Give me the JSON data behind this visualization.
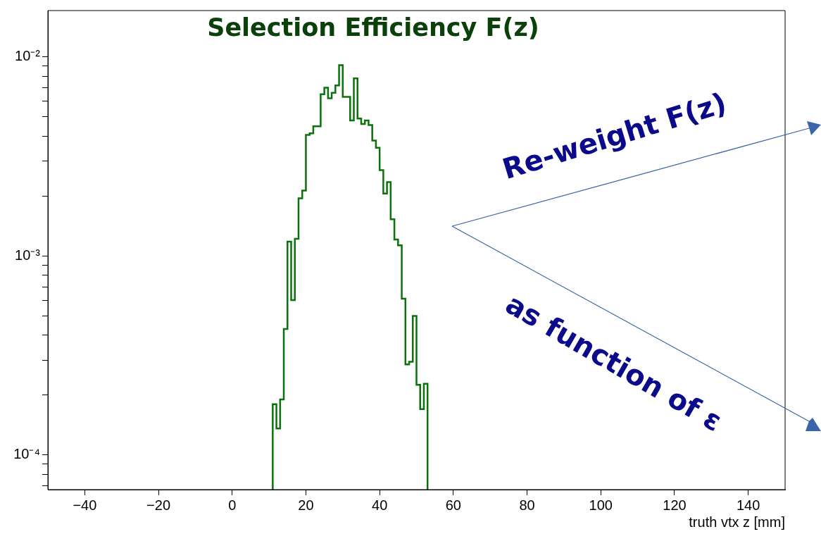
{
  "chart_data": {
    "type": "histogram",
    "title": "Selection Efficiency F(z)",
    "xlabel": "truth vtx z [mm]",
    "bins": [
      11,
      12,
      13,
      14,
      15,
      16,
      17,
      18,
      19,
      20,
      21,
      22,
      23,
      24,
      25,
      26,
      27,
      28,
      29,
      30,
      31,
      32,
      33,
      34,
      35,
      36,
      37,
      38,
      39,
      40,
      41,
      42,
      43,
      44,
      45,
      46,
      47,
      48,
      49,
      50,
      51,
      52,
      53
    ],
    "values": [
      0.00018,
      0.000136,
      0.00019,
      0.00043,
      0.00118,
      0.0006,
      0.00122,
      0.00195,
      0.00213,
      0.00406,
      0.00413,
      0.00448,
      0.00448,
      0.0065,
      0.007,
      0.0062,
      0.0066,
      0.0072,
      0.0091,
      0.0063,
      0.0063,
      0.0048,
      0.0078,
      0.0049,
      0.0046,
      0.0048,
      0.00455,
      0.0038,
      0.0035,
      0.0027,
      0.00206,
      0.00235,
      0.00153,
      0.00121,
      0.00113,
      0.00061,
      0.000285,
      0.000294,
      0.0005,
      0.000225,
      0.00017,
      0.000228
    ],
    "color": "#0b720b",
    "xlim": [
      -50,
      150
    ],
    "xticks": [
      -40,
      -20,
      0,
      20,
      40,
      60,
      80,
      100,
      120,
      140
    ],
    "ylim": [
      6.7e-05,
      0.0171
    ],
    "yticks": [
      {
        "value": 7e-05,
        "label": null
      },
      {
        "value": 8e-05,
        "label": null
      },
      {
        "value": 9e-05,
        "label": null
      },
      {
        "value": 0.0001,
        "label": "10⁻⁴"
      },
      {
        "value": 0.0002,
        "label": null
      },
      {
        "value": 0.0003,
        "label": null
      },
      {
        "value": 0.0004,
        "label": null
      },
      {
        "value": 0.0005,
        "label": null
      },
      {
        "value": 0.0006,
        "label": null
      },
      {
        "value": 0.0007,
        "label": null
      },
      {
        "value": 0.0008,
        "label": null
      },
      {
        "value": 0.0009,
        "label": null
      },
      {
        "value": 0.001,
        "label": "10⁻³"
      },
      {
        "value": 0.002,
        "label": null
      },
      {
        "value": 0.003,
        "label": null
      },
      {
        "value": 0.004,
        "label": null
      },
      {
        "value": 0.005,
        "label": null
      },
      {
        "value": 0.006,
        "label": null
      },
      {
        "value": 0.007,
        "label": null
      },
      {
        "value": 0.008,
        "label": null
      },
      {
        "value": 0.009,
        "label": null
      },
      {
        "value": 0.01,
        "label": "10⁻²"
      }
    ],
    "log": "y",
    "grid": false,
    "legend": false,
    "annotations": [
      "Re-weight F(z)",
      "as function of ε"
    ]
  }
}
